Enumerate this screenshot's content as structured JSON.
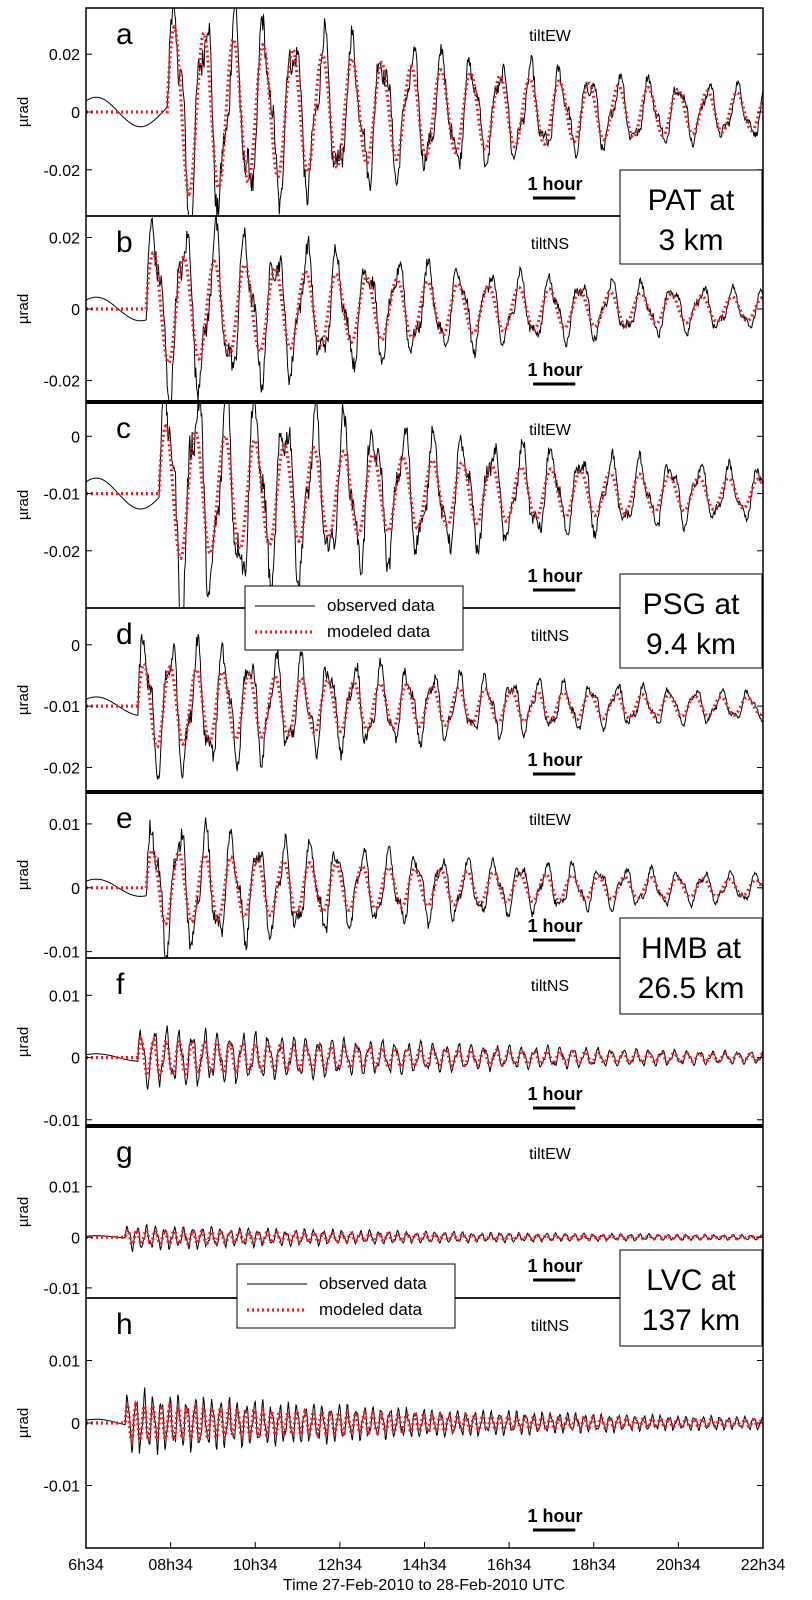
{
  "chart_data": {
    "type": "line",
    "xlabel": "Time 27-Feb-2010 to 28-Feb-2010 UTC",
    "x_ticks": [
      "6h34",
      "08h34",
      "10h34",
      "12h34",
      "14h34",
      "16h34",
      "18h34",
      "20h34",
      "22h34"
    ],
    "xlim_hours": [
      6.5667,
      22.5667
    ],
    "scale_bar": "1 hour",
    "legend": {
      "observed": "observed data",
      "modeled": "modeled data"
    },
    "series_colors": {
      "observed": "#000000",
      "modeled": "#ee1c24"
    },
    "stations": [
      {
        "label": "PAT at\n3 km",
        "panels": [
          "a",
          "b"
        ]
      },
      {
        "label": "PSG at\n9.4 km",
        "panels": [
          "c",
          "d"
        ]
      },
      {
        "label": "HMB at\n26.5 km",
        "panels": [
          "e",
          "f"
        ]
      },
      {
        "label": "LVC at\n137 km",
        "panels": [
          "g",
          "h"
        ]
      }
    ],
    "panels": [
      {
        "letter": "a",
        "component": "tiltEW",
        "ylabel": "µrad",
        "ylim": [
          -0.036,
          0.036
        ],
        "yticks": [
          0.02,
          0,
          -0.02
        ],
        "ytick_labels": [
          "0.02",
          "0",
          "-0.02"
        ],
        "sync": [
          0,
          0.034,
          0.03,
          8.5
        ],
        "mod": [
          0,
          0.024,
          0.028,
          8.5
        ],
        "arrival_hours": 8.2,
        "period_hours": 0.7
      },
      {
        "letter": "b",
        "component": "tiltNS",
        "ylabel": "µrad",
        "ylim": [
          -0.026,
          0.026
        ],
        "yticks": [
          0.02,
          0,
          -0.02
        ],
        "ytick_labels": [
          "0.02",
          "0",
          "-0.02"
        ],
        "sync": [
          0,
          0.022,
          0.016,
          8.0
        ],
        "mod": [
          0,
          0.02,
          0.016,
          8.0
        ],
        "arrival_hours": 8.6,
        "period_hours": 0.72
      },
      {
        "letter": "c",
        "component": "tiltEW",
        "ylabel": "µrad",
        "ylim": [
          -0.03,
          0.006
        ],
        "yticks": [
          0,
          -0.01,
          -0.02
        ],
        "ytick_labels": [
          "0",
          "-0.01",
          "-0.02"
        ],
        "sync": [
          -0.01,
          0.018,
          0.012,
          8.3
        ],
        "mod": [
          -0.01,
          0.016,
          0.011,
          8.3
        ],
        "arrival_hours": 8.3,
        "period_hours": 0.7
      },
      {
        "letter": "d",
        "component": "tiltNS",
        "ylabel": "µrad",
        "ylim": [
          -0.024,
          0.006
        ],
        "yticks": [
          0,
          -0.01,
          -0.02
        ],
        "ytick_labels": [
          "0",
          "-0.01",
          "-0.02"
        ],
        "sync": [
          -0.01,
          0.01,
          0.007,
          7.8
        ],
        "mod": [
          -0.01,
          0.008,
          0.006,
          7.8
        ],
        "arrival_hours": 8.2,
        "period_hours": 0.62
      },
      {
        "letter": "e",
        "component": "tiltEW",
        "ylabel": "µrad",
        "ylim": [
          -0.011,
          0.015
        ],
        "yticks": [
          0.01,
          0,
          -0.01
        ],
        "ytick_labels": [
          "0.01",
          "0",
          "-0.01"
        ],
        "sync": [
          0,
          0.009,
          0.006,
          8.0
        ],
        "mod": [
          0,
          0.009,
          0.006,
          8.0
        ],
        "arrival_hours": 8.3,
        "period_hours": 0.62
      },
      {
        "letter": "f",
        "component": "tiltNS",
        "ylabel": "µrad",
        "ylim": [
          -0.011,
          0.016
        ],
        "yticks": [
          0.01,
          0,
          -0.01
        ],
        "ytick_labels": [
          "0.01",
          "0",
          "-0.01"
        ],
        "sync": [
          0,
          0.004,
          0.003,
          7.8
        ],
        "mod": [
          0,
          0.003,
          0.0025,
          7.8
        ],
        "arrival_hours": 8.2,
        "period_hours": 0.3
      },
      {
        "letter": "g",
        "component": "tiltEW",
        "ylabel": "µrad",
        "ylim": [
          -0.012,
          0.022
        ],
        "yticks": [
          0.01,
          0,
          -0.01
        ],
        "ytick_labels": [
          "0.01",
          "0",
          "-0.01"
        ],
        "sync": [
          0,
          0.002,
          0.0015,
          7.5
        ],
        "mod": [
          0,
          0.0005,
          0.0004,
          7.5
        ],
        "arrival_hours": 8.0,
        "period_hours": 0.22
      },
      {
        "letter": "h",
        "component": "tiltNS",
        "ylabel": "µrad",
        "ylim": [
          -0.02,
          0.02
        ],
        "yticks": [
          0.01,
          0,
          -0.01
        ],
        "ytick_labels": [
          "0.01",
          "0",
          "-0.01"
        ],
        "sync": [
          0,
          0.004,
          0.003,
          7.5
        ],
        "mod": [
          0,
          0.0004,
          0.0003,
          7.5
        ],
        "arrival_hours": 8.0,
        "period_hours": 0.2
      }
    ]
  }
}
